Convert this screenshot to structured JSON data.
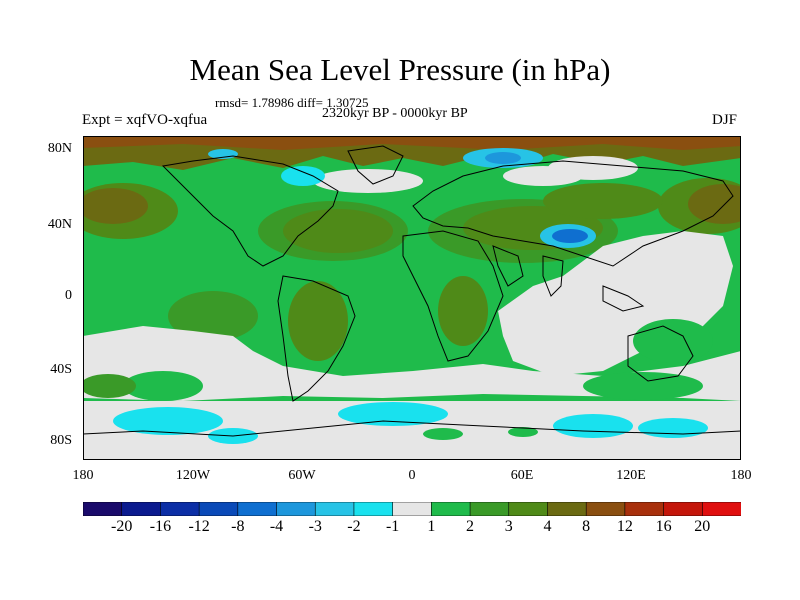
{
  "title": "Mean Sea Level Pressure (in hPa)",
  "stats": "rmsd= 1.78986 diff= 1.30725",
  "period": "2320kyr BP - 0000kyr BP",
  "experiment": "Expt = xqfVO-xqfua",
  "season": "DJF",
  "lat_labels": [
    "80N",
    "40N",
    "0",
    "40S",
    "80S"
  ],
  "lon_labels": [
    "180",
    "120W",
    "60W",
    "0",
    "60E",
    "120E",
    "180"
  ],
  "colorbar": {
    "labels": [
      "-20",
      "-16",
      "-12",
      "-8",
      "-4",
      "-3",
      "-2",
      "-1",
      "1",
      "2",
      "3",
      "4",
      "8",
      "12",
      "16",
      "20"
    ],
    "colors": [
      "#1a0a6b",
      "#0b1b8f",
      "#0c2fa6",
      "#0a4ab8",
      "#0f6fd0",
      "#1d97dc",
      "#27c3e6",
      "#19e1ee",
      "#e6e6e6",
      "#1fbb4b",
      "#3a9a28",
      "#4f8a18",
      "#6b6a12",
      "#8a4f10",
      "#a8300c",
      "#c4160a",
      "#e00f0f"
    ]
  },
  "colors": {
    "land_outline": "#000000",
    "ocean_base": "#1fbb4b",
    "neutral": "#e6e6e6"
  }
}
